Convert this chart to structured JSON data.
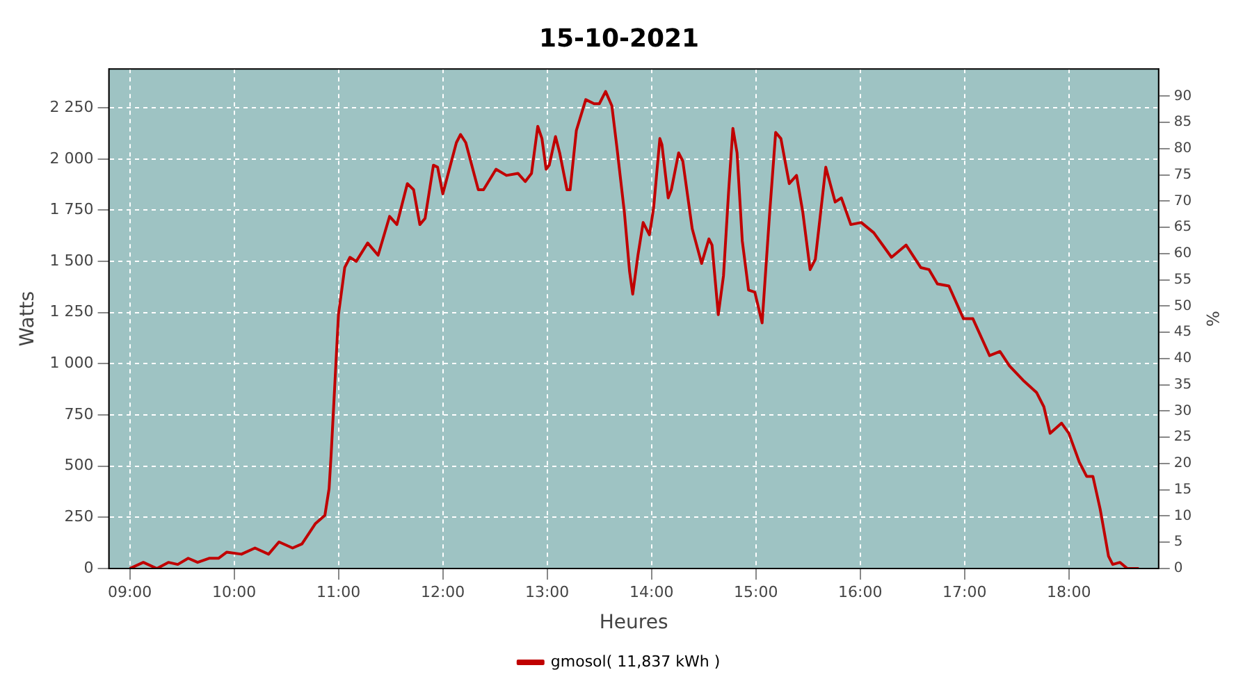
{
  "chart_data": {
    "type": "line",
    "title": "15-10-2021",
    "xlabel": "Heures",
    "ylabel": "Watts",
    "y2label": "%",
    "x": [
      9.0,
      9.13,
      9.26,
      9.37,
      9.46,
      9.56,
      9.65,
      9.76,
      9.85,
      9.93,
      10.07,
      10.2,
      10.33,
      10.43,
      10.56,
      10.65,
      10.78,
      10.87,
      10.91,
      10.93,
      10.96,
      11.0,
      11.06,
      11.11,
      11.17,
      11.28,
      11.38,
      11.49,
      11.56,
      11.66,
      11.72,
      11.78,
      11.83,
      11.91,
      11.95,
      12.0,
      12.13,
      12.17,
      12.22,
      12.34,
      12.39,
      12.51,
      12.61,
      12.72,
      12.79,
      12.85,
      12.91,
      12.95,
      12.99,
      13.02,
      13.08,
      13.12,
      13.19,
      13.22,
      13.28,
      13.37,
      13.45,
      13.5,
      13.56,
      13.62,
      13.67,
      13.74,
      13.79,
      13.82,
      13.87,
      13.92,
      13.98,
      14.02,
      14.08,
      14.1,
      14.16,
      14.19,
      14.26,
      14.3,
      14.39,
      14.48,
      14.55,
      14.58,
      14.64,
      14.69,
      14.74,
      14.78,
      14.82,
      14.87,
      14.93,
      14.99,
      15.06,
      15.13,
      15.19,
      15.24,
      15.32,
      15.39,
      15.45,
      15.52,
      15.57,
      15.67,
      15.76,
      15.82,
      15.91,
      16.01,
      16.13,
      16.3,
      16.44,
      16.58,
      16.66,
      16.74,
      16.85,
      16.99,
      17.08,
      17.24,
      17.34,
      17.43,
      17.56,
      17.69,
      17.76,
      17.82,
      17.93,
      18.0,
      18.1,
      18.17,
      18.23,
      18.3,
      18.38,
      18.42,
      18.49,
      18.56,
      18.67
    ],
    "series": [
      {
        "name": "gmosol( 11,837 kWh )",
        "color": "#c00000",
        "values": [
          0,
          30,
          0,
          30,
          20,
          50,
          30,
          50,
          50,
          80,
          70,
          100,
          70,
          130,
          100,
          120,
          220,
          260,
          390,
          560,
          850,
          1240,
          1470,
          1520,
          1500,
          1590,
          1530,
          1720,
          1680,
          1880,
          1850,
          1680,
          1710,
          1970,
          1960,
          1830,
          2080,
          2120,
          2080,
          1850,
          1850,
          1950,
          1920,
          1930,
          1890,
          1930,
          2160,
          2100,
          1950,
          1970,
          2110,
          2030,
          1850,
          1850,
          2140,
          2290,
          2270,
          2270,
          2330,
          2260,
          2050,
          1740,
          1450,
          1340,
          1530,
          1690,
          1630,
          1760,
          2100,
          2070,
          1810,
          1850,
          2030,
          1990,
          1660,
          1490,
          1610,
          1580,
          1240,
          1430,
          1850,
          2150,
          2030,
          1600,
          1360,
          1350,
          1200,
          1720,
          2130,
          2100,
          1880,
          1920,
          1740,
          1460,
          1510,
          1960,
          1790,
          1810,
          1680,
          1690,
          1640,
          1520,
          1580,
          1470,
          1460,
          1390,
          1380,
          1220,
          1220,
          1040,
          1060,
          990,
          920,
          860,
          790,
          660,
          710,
          660,
          520,
          450,
          450,
          290,
          60,
          20,
          30,
          0,
          0
        ]
      }
    ],
    "xlim": [
      8.8,
      18.86
    ],
    "xticks": [
      {
        "value": 9,
        "label": "09:00"
      },
      {
        "value": 10,
        "label": "10:00"
      },
      {
        "value": 11,
        "label": "11:00"
      },
      {
        "value": 12,
        "label": "12:00"
      },
      {
        "value": 13,
        "label": "13:00"
      },
      {
        "value": 14,
        "label": "14:00"
      },
      {
        "value": 15,
        "label": "15:00"
      },
      {
        "value": 16,
        "label": "16:00"
      },
      {
        "value": 17,
        "label": "17:00"
      },
      {
        "value": 18,
        "label": "18:00"
      }
    ],
    "ylim": [
      0,
      2440
    ],
    "yticks": [
      0,
      250,
      500,
      750,
      {
        "value": 1000,
        "label": "1 000"
      },
      {
        "value": 1250,
        "label": "1 250"
      },
      {
        "value": 1500,
        "label": "1 500"
      },
      {
        "value": 1750,
        "label": "1 750"
      },
      {
        "value": 2000,
        "label": "2 000"
      },
      {
        "value": 2250,
        "label": "2 250"
      }
    ],
    "y2lim": [
      0,
      95.2
    ],
    "y2ticks": [
      0,
      5,
      10,
      15,
      20,
      25,
      30,
      35,
      40,
      45,
      50,
      55,
      60,
      65,
      70,
      75,
      80,
      85,
      90
    ],
    "grid": true,
    "legend": "bottom",
    "marker": "none",
    "line_style": "solid"
  }
}
